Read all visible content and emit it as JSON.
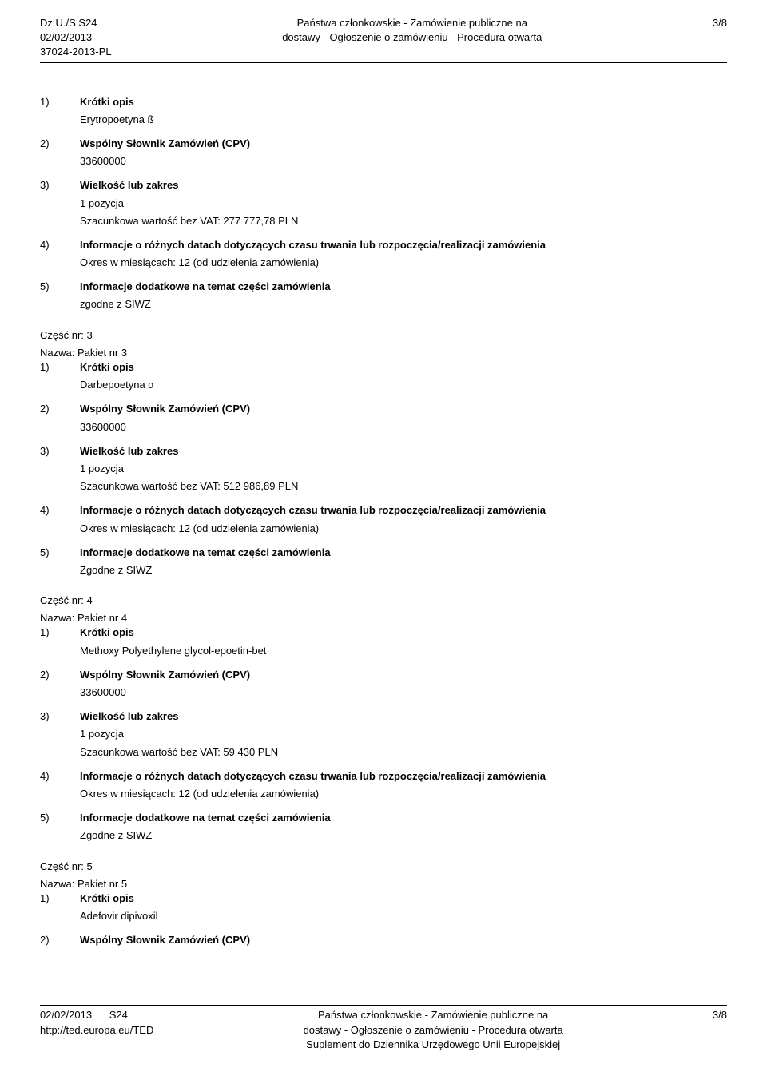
{
  "header": {
    "dzus": "Dz.U./S S24",
    "date": "02/02/2013",
    "ref": "37024-2013-PL",
    "center_line1": "Państwa członkowskie - Zamówienie publiczne na",
    "center_line2": "dostawy - Ogłoszenie o zamówieniu - Procedura otwarta",
    "page": "3/8"
  },
  "parts": [
    {
      "items": [
        {
          "num": "1)",
          "label": "Krótki opis",
          "lines": [
            "Erytropoetyna ß"
          ]
        },
        {
          "num": "2)",
          "label": "Wspólny Słownik Zamówień (CPV)",
          "lines": [
            "33600000"
          ]
        },
        {
          "num": "3)",
          "label": "Wielkość lub zakres",
          "lines": [
            "1 pozycja",
            "Szacunkowa wartość bez VAT: 277 777,78 PLN"
          ]
        },
        {
          "num": "4)",
          "label": "Informacje o różnych datach dotyczących czasu trwania lub rozpoczęcia/realizacji zamówienia",
          "lines": [
            "Okres w miesiącach: 12 (od udzielenia zamówienia)"
          ]
        },
        {
          "num": "5)",
          "label": "Informacje dodatkowe na temat części zamówienia",
          "lines": [
            "zgodne z SIWZ"
          ]
        }
      ]
    },
    {
      "part_line": "Część nr: 3",
      "name_line": "Nazwa: Pakiet nr 3",
      "items": [
        {
          "num": "1)",
          "label": "Krótki opis",
          "lines": [
            "Darbepoetyna α"
          ]
        },
        {
          "num": "2)",
          "label": "Wspólny Słownik Zamówień (CPV)",
          "lines": [
            "33600000"
          ]
        },
        {
          "num": "3)",
          "label": "Wielkość lub zakres",
          "lines": [
            "1 pozycja",
            "Szacunkowa wartość bez VAT: 512 986,89 PLN"
          ]
        },
        {
          "num": "4)",
          "label": "Informacje o różnych datach dotyczących czasu trwania lub rozpoczęcia/realizacji zamówienia",
          "lines": [
            "Okres w miesiącach: 12 (od udzielenia zamówienia)"
          ]
        },
        {
          "num": "5)",
          "label": "Informacje dodatkowe na temat części zamówienia",
          "lines": [
            "Zgodne z SIWZ"
          ]
        }
      ]
    },
    {
      "part_line": "Część nr: 4",
      "name_line": "Nazwa: Pakiet nr 4",
      "items": [
        {
          "num": "1)",
          "label": "Krótki opis",
          "lines": [
            "Methoxy Polyethylene glycol-epoetin-bet"
          ]
        },
        {
          "num": "2)",
          "label": "Wspólny Słownik Zamówień (CPV)",
          "lines": [
            "33600000"
          ]
        },
        {
          "num": "3)",
          "label": "Wielkość lub zakres",
          "lines": [
            "1 pozycja",
            "Szacunkowa wartość bez VAT: 59 430 PLN"
          ]
        },
        {
          "num": "4)",
          "label": "Informacje o różnych datach dotyczących czasu trwania lub rozpoczęcia/realizacji zamówienia",
          "lines": [
            "Okres w miesiącach: 12 (od udzielenia zamówienia)"
          ]
        },
        {
          "num": "5)",
          "label": "Informacje dodatkowe na temat części zamówienia",
          "lines": [
            "Zgodne z SIWZ"
          ]
        }
      ]
    },
    {
      "part_line": "Część nr: 5",
      "name_line": "Nazwa: Pakiet nr 5",
      "items": [
        {
          "num": "1)",
          "label": "Krótki opis",
          "lines": [
            "Adefovir dipivoxil"
          ]
        },
        {
          "num": "2)",
          "label": "Wspólny Słownik Zamówień (CPV)",
          "lines": []
        }
      ]
    }
  ],
  "footer": {
    "left_line1": "02/02/2013",
    "left_line1_suffix": "S24",
    "left_line2": "http://ted.europa.eu/TED",
    "center_line1": "Państwa członkowskie - Zamówienie publiczne na",
    "center_line2": "dostawy - Ogłoszenie o zamówieniu - Procedura otwarta",
    "center_line3": "Suplement do Dziennika Urzędowego Unii Europejskiej",
    "page": "3/8"
  }
}
